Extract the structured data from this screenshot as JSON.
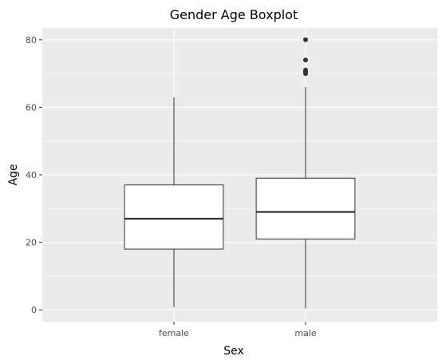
{
  "chart_data": {
    "type": "boxplot",
    "title": "Gender Age Boxplot",
    "xlabel": "Sex",
    "ylabel": "Age",
    "categories": [
      "female",
      "male"
    ],
    "ylim": [
      -3.5,
      83.5
    ],
    "yticks": [
      0,
      20,
      40,
      60,
      80
    ],
    "boxes": [
      {
        "category": "female",
        "whisker_low": 0.75,
        "q1": 18,
        "median": 27,
        "q3": 37,
        "whisker_high": 63,
        "outliers": []
      },
      {
        "category": "male",
        "whisker_low": 0.42,
        "q1": 21,
        "median": 29,
        "q3": 39,
        "whisker_high": 66,
        "outliers": [
          70,
          70.5,
          71,
          74,
          80
        ]
      }
    ],
    "grid": true,
    "colors": {
      "panel": "#ebebeb",
      "grid": "#ffffff",
      "box_fill": "#ffffff",
      "box_line": "#333333",
      "outlier": "#333333"
    }
  }
}
